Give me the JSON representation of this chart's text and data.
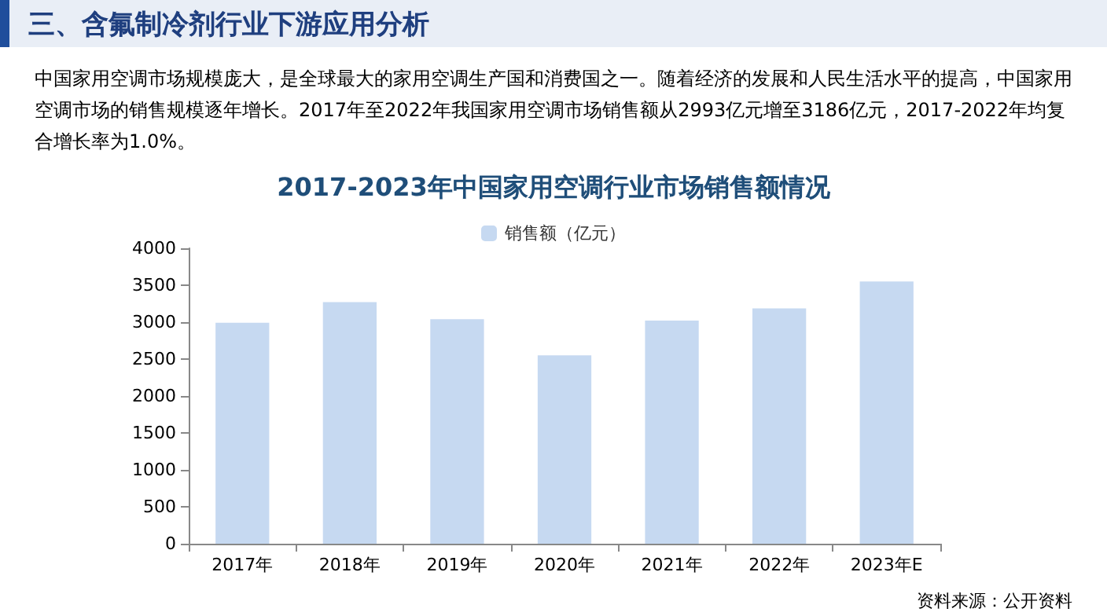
{
  "chart_data": {
    "type": "bar",
    "title": "2017-2023年中国家用空调行业市场销售额情况",
    "annotations": [
      "三、含氟制冷剂行业下游应用分析",
      "中国家用空调市场规模庞大，是全球最大的家用空调生产国和消费国之一。随着经济的发展和人民生活水平的提高，中国家用空调市场的销售规模逐年增长。2017年至2022年我国家用空调市场销售额从2993亿元增至3186亿元，2017-2022年均复合增长率为1.0%。",
      "资料来源：公开资料"
    ],
    "categories": [
      "2017年",
      "2018年",
      "2019年",
      "2020年",
      "2021年",
      "2022年",
      "2023年E"
    ],
    "series": [
      {
        "name": "销售额（亿元）",
        "color": "#c6d9f1",
        "values": [
          2993,
          3270,
          3040,
          2550,
          3020,
          3186,
          3550
        ]
      }
    ],
    "ylim": [
      0,
      4000
    ],
    "yticks": [
      0,
      500,
      1000,
      1500,
      2000,
      2500,
      3000,
      3500,
      4000
    ],
    "grid": false,
    "legend": "top"
  }
}
